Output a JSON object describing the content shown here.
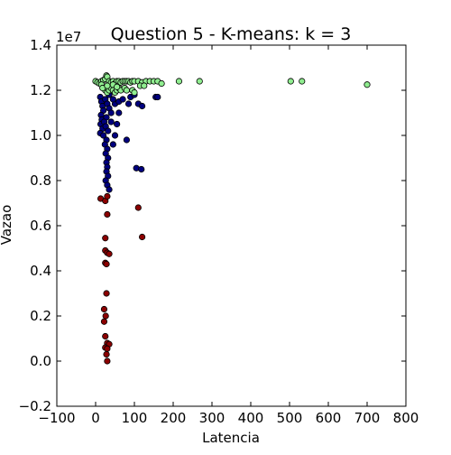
{
  "chart_data": {
    "type": "scatter",
    "title": "Question 5 - K-means: k = 3",
    "xlabel": "Latencia",
    "ylabel": "Vazao",
    "y_offset_label": "1e7",
    "xlim": [
      -100,
      800
    ],
    "ylim": [
      -0.2,
      1.4
    ],
    "y_multiplier": 10000000,
    "grid": false,
    "xticks": [
      -100,
      0,
      100,
      200,
      300,
      400,
      500,
      600,
      700,
      800
    ],
    "xtick_labels": [
      "−100",
      "0",
      "100",
      "200",
      "300",
      "400",
      "500",
      "600",
      "700",
      "800"
    ],
    "yticks": [
      -0.2,
      0.0,
      0.2,
      0.4,
      0.6,
      0.8,
      1.0,
      1.2,
      1.4
    ],
    "ytick_labels": [
      "−0.2",
      "0.0",
      "0.2",
      "0.4",
      "0.6",
      "0.8",
      "1.0",
      "1.2",
      "1.4"
    ],
    "series": [
      {
        "color": "#8b0000",
        "points": [
          [
            13,
            0.72
          ],
          [
            25,
            0.71
          ],
          [
            30,
            0.73
          ],
          [
            110,
            0.68
          ],
          [
            30,
            0.65
          ],
          [
            120,
            0.55
          ],
          [
            25,
            0.545
          ],
          [
            25,
            0.49
          ],
          [
            30,
            0.48
          ],
          [
            35,
            0.475
          ],
          [
            25,
            0.435
          ],
          [
            28,
            0.43
          ],
          [
            28,
            0.3
          ],
          [
            22,
            0.23
          ],
          [
            26,
            0.2
          ],
          [
            22,
            0.175
          ],
          [
            25,
            0.11
          ],
          [
            30,
            0.08
          ],
          [
            35,
            0.075
          ],
          [
            25,
            0.06
          ],
          [
            30,
            0.055
          ],
          [
            28,
            0.03
          ],
          [
            30,
            0.0
          ]
        ]
      },
      {
        "color": "#00007f",
        "points": [
          [
            12,
            1.17
          ],
          [
            15,
            1.15
          ],
          [
            18,
            1.13
          ],
          [
            20,
            1.11
          ],
          [
            14,
            1.09
          ],
          [
            16,
            1.07
          ],
          [
            13,
            1.05
          ],
          [
            18,
            1.03
          ],
          [
            12,
            1.01
          ],
          [
            25,
            1.16
          ],
          [
            30,
            1.14
          ],
          [
            35,
            1.12
          ],
          [
            40,
            1.1
          ],
          [
            28,
            1.08
          ],
          [
            22,
            1.06
          ],
          [
            26,
            1.04
          ],
          [
            32,
            1.02
          ],
          [
            20,
            1.0
          ],
          [
            28,
            0.98
          ],
          [
            24,
            0.96
          ],
          [
            30,
            0.94
          ],
          [
            26,
            0.92
          ],
          [
            32,
            0.9
          ],
          [
            28,
            0.88
          ],
          [
            30,
            0.86
          ],
          [
            28,
            0.84
          ],
          [
            32,
            0.82
          ],
          [
            26,
            0.8
          ],
          [
            30,
            0.78
          ],
          [
            35,
            0.76
          ],
          [
            45,
            0.96
          ],
          [
            50,
            1.0
          ],
          [
            55,
            1.05
          ],
          [
            60,
            1.1
          ],
          [
            50,
            1.14
          ],
          [
            45,
            1.16
          ],
          [
            40,
            1.06
          ],
          [
            85,
            1.14
          ],
          [
            90,
            1.17
          ],
          [
            100,
            1.18
          ],
          [
            80,
            0.98
          ],
          [
            110,
            1.14
          ],
          [
            120,
            1.13
          ],
          [
            155,
            1.17
          ],
          [
            160,
            1.17
          ],
          [
            60,
            1.15
          ],
          [
            70,
            1.16
          ],
          [
            105,
            0.855
          ],
          [
            118,
            0.85
          ],
          [
            35,
            1.18
          ]
        ]
      },
      {
        "color": "#90ee90",
        "points": [
          [
            0,
            1.24
          ],
          [
            5,
            1.235
          ],
          [
            10,
            1.23
          ],
          [
            15,
            1.24
          ],
          [
            20,
            1.245
          ],
          [
            25,
            1.25
          ],
          [
            28,
            1.265
          ],
          [
            30,
            1.26
          ],
          [
            35,
            1.24
          ],
          [
            40,
            1.235
          ],
          [
            45,
            1.24
          ],
          [
            50,
            1.23
          ],
          [
            55,
            1.24
          ],
          [
            60,
            1.24
          ],
          [
            65,
            1.235
          ],
          [
            70,
            1.24
          ],
          [
            75,
            1.24
          ],
          [
            80,
            1.24
          ],
          [
            85,
            1.24
          ],
          [
            90,
            1.235
          ],
          [
            95,
            1.24
          ],
          [
            100,
            1.24
          ],
          [
            110,
            1.24
          ],
          [
            120,
            1.235
          ],
          [
            130,
            1.24
          ],
          [
            140,
            1.24
          ],
          [
            150,
            1.24
          ],
          [
            160,
            1.24
          ],
          [
            170,
            1.23
          ],
          [
            20,
            1.21
          ],
          [
            25,
            1.2
          ],
          [
            30,
            1.19
          ],
          [
            35,
            1.2
          ],
          [
            40,
            1.21
          ],
          [
            45,
            1.2
          ],
          [
            50,
            1.19
          ],
          [
            55,
            1.2
          ],
          [
            60,
            1.21
          ],
          [
            65,
            1.2
          ],
          [
            75,
            1.21
          ],
          [
            80,
            1.2
          ],
          [
            95,
            1.2
          ],
          [
            100,
            1.19
          ],
          [
            115,
            1.22
          ],
          [
            125,
            1.22
          ],
          [
            15,
            1.225
          ],
          [
            18,
            1.21
          ],
          [
            215,
            1.24
          ],
          [
            268,
            1.24
          ],
          [
            503,
            1.24
          ],
          [
            532,
            1.24
          ],
          [
            700,
            1.225
          ],
          [
            30,
            1.22
          ],
          [
            45,
            1.225
          ],
          [
            55,
            1.215
          ]
        ]
      }
    ]
  }
}
